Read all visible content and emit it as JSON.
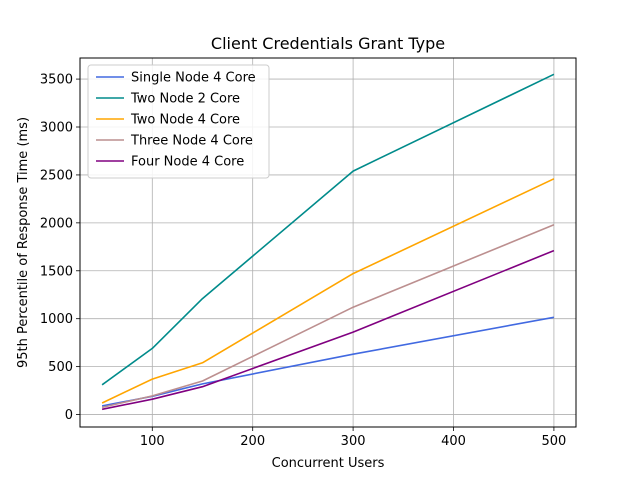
{
  "chart_data": {
    "type": "line",
    "title": "Client Credentials Grant Type",
    "xlabel": "Concurrent Users",
    "ylabel": "95th Percentile of Response Time (ms)",
    "x": [
      50,
      100,
      150,
      300,
      500
    ],
    "xlim": [
      28,
      522
    ],
    "ylim": [
      -130,
      3720
    ],
    "xticks": [
      100,
      200,
      300,
      400,
      500
    ],
    "yticks": [
      0,
      500,
      1000,
      1500,
      2000,
      2500,
      3000,
      3500
    ],
    "grid": true,
    "legend_position": "top-left",
    "series": [
      {
        "name": "Single Node 4 Core",
        "color": "#4169e1",
        "values": [
          90,
          190,
          320,
          630,
          1015
        ]
      },
      {
        "name": "Two Node 2 Core",
        "color": "#008b8b",
        "values": [
          310,
          690,
          1210,
          2540,
          3550
        ]
      },
      {
        "name": "Two Node 4 Core",
        "color": "#ffa500",
        "values": [
          120,
          370,
          540,
          1470,
          2460
        ]
      },
      {
        "name": "Three Node 4 Core",
        "color": "#bc8f8f",
        "values": [
          75,
          195,
          350,
          1120,
          1980
        ]
      },
      {
        "name": "Four Node 4 Core",
        "color": "#800080",
        "values": [
          55,
          160,
          290,
          860,
          1710
        ]
      }
    ]
  }
}
